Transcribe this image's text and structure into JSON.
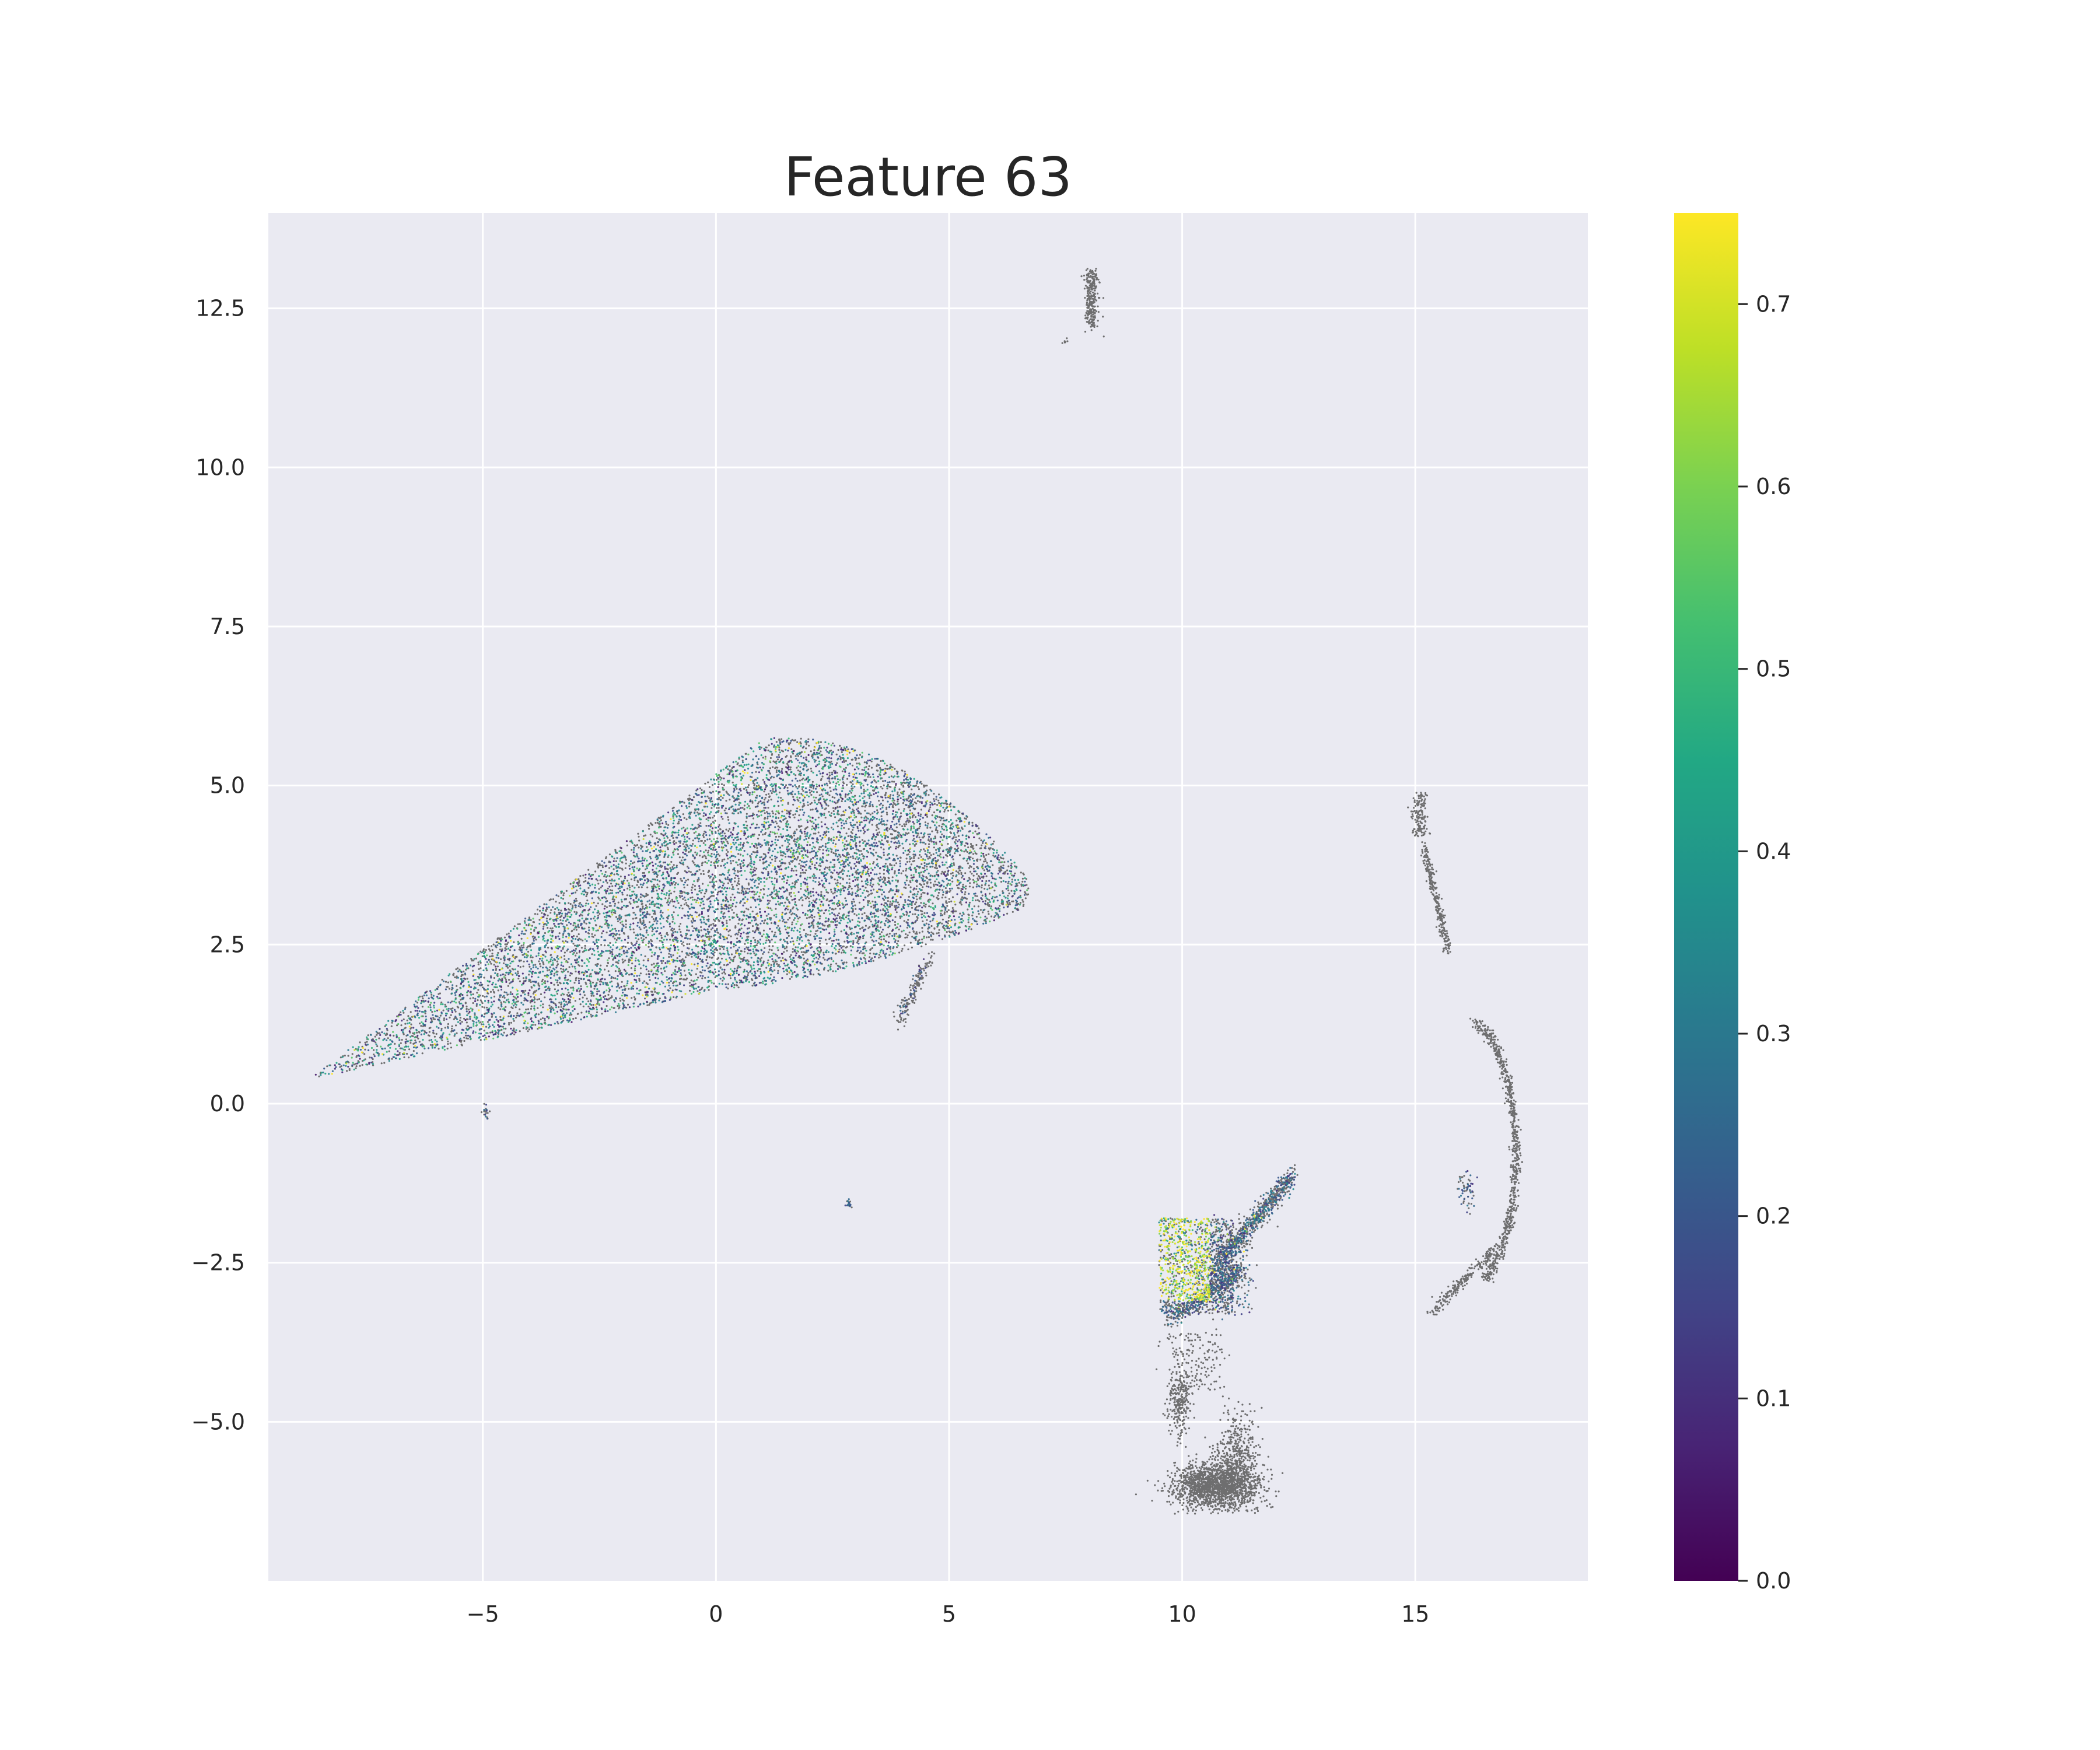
{
  "chart_data": {
    "type": "scatter",
    "title": "Feature 63",
    "xlabel": "",
    "ylabel": "",
    "xlim": [
      -9.6,
      18.7
    ],
    "ylim": [
      -7.5,
      14.0
    ],
    "x_ticks": [
      -5,
      0,
      5,
      10,
      15
    ],
    "x_tick_labels": [
      "−5",
      "0",
      "5",
      "10",
      "15"
    ],
    "y_ticks": [
      -5.0,
      -2.5,
      0.0,
      2.5,
      5.0,
      7.5,
      10.0,
      12.5
    ],
    "y_tick_labels": [
      "−5.0",
      "−2.5",
      "0.0",
      "2.5",
      "5.0",
      "7.5",
      "10.0",
      "12.5"
    ],
    "grid": true,
    "background": "#eaeaf2",
    "gridline_color": "#ffffff",
    "unexpressed_color": "#606060",
    "colormap": "viridis",
    "colorbar": {
      "range": [
        0.0,
        0.75
      ],
      "ticks": [
        0.0,
        0.1,
        0.2,
        0.3,
        0.4,
        0.5,
        0.6,
        0.7
      ],
      "tick_labels": [
        "0.0",
        "0.1",
        "0.2",
        "0.3",
        "0.4",
        "0.5",
        "0.6",
        "0.7"
      ]
    },
    "clusters": [
      {
        "name": "main-cluster",
        "x_range": [
          -8.6,
          6.7
        ],
        "y_range": [
          0.4,
          5.9
        ],
        "values": "mixed 0.0–0.75, mostly 0.1–0.5"
      },
      {
        "name": "main-cluster-tail",
        "points": [
          [
            3.9,
            1.3
          ],
          [
            4.2,
            1.6
          ],
          [
            4.3,
            2.1
          ],
          [
            4.5,
            2.3
          ]
        ]
      },
      {
        "name": "outlier-low-left",
        "points": [
          [
            -4.9,
            -0.1
          ],
          [
            -5.0,
            -0.2
          ]
        ]
      },
      {
        "name": "outlier-mid",
        "points": [
          [
            2.8,
            -1.5
          ],
          [
            2.9,
            -1.6
          ]
        ]
      },
      {
        "name": "top-island",
        "x_range": [
          7.4,
          8.3
        ],
        "y_range": [
          11.9,
          13.1
        ],
        "values": "grey"
      },
      {
        "name": "right-arc",
        "x_range": [
          14.9,
          17.2
        ],
        "y_range": [
          -3.3,
          4.9
        ],
        "values": "grey, few 0.1–0.2"
      },
      {
        "name": "lower-right-upper",
        "x_range": [
          9.3,
          12.4
        ],
        "y_range": [
          -3.6,
          -1.1
        ],
        "values": "mixed incl. 0.6–0.75 highs"
      },
      {
        "name": "lower-right-blob",
        "x_range": [
          9.7,
          11.6
        ],
        "y_range": [
          -6.4,
          -4.3
        ],
        "values": "grey"
      }
    ]
  }
}
